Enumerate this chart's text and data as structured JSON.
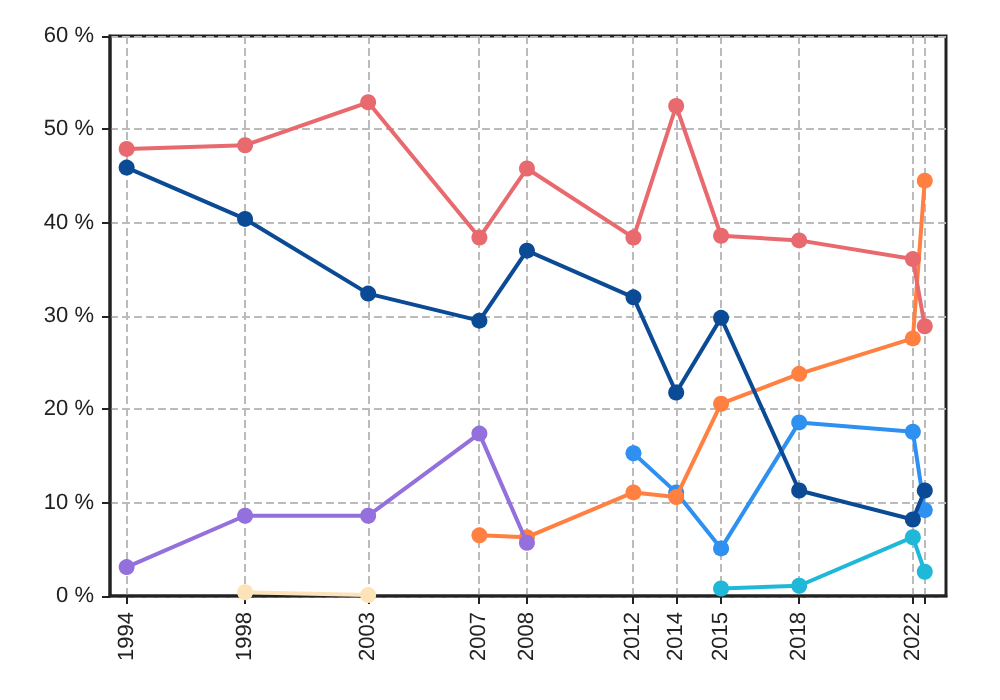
{
  "chart_data": {
    "type": "line",
    "x": [
      "1994-10",
      "1998-12",
      "2003-04",
      "2007-03",
      "2008-11",
      "2012-08",
      "2014-02",
      "2015-09",
      "2018-06",
      "2022-06",
      "2022-11"
    ],
    "series": [
      {
        "color": "#e8696e",
        "values": [
          47.9,
          48.3,
          52.9,
          38.4,
          45.8,
          38.4,
          52.5,
          38.6,
          38.1,
          36.1,
          28.9
        ]
      },
      {
        "color": "#0b4a94",
        "values": [
          45.9,
          40.4,
          32.4,
          29.5,
          37.0,
          32.0,
          21.8,
          29.8,
          11.3,
          8.2,
          11.3
        ]
      },
      {
        "color": "#9370db",
        "values": [
          3.1,
          8.6,
          8.6,
          17.4,
          5.7,
          null,
          null,
          null,
          null,
          null,
          null
        ]
      },
      {
        "color": "#fde3b8",
        "values": [
          null,
          0.4,
          0.1,
          null,
          null,
          null,
          null,
          null,
          null,
          null,
          null
        ]
      },
      {
        "color": "#ff8040",
        "values": [
          null,
          null,
          null,
          6.5,
          6.3,
          11.1,
          10.6,
          20.6,
          23.8,
          27.6,
          44.5
        ]
      },
      {
        "color": "#2e90f0",
        "values": [
          null,
          null,
          null,
          null,
          null,
          15.3,
          11.1,
          5.1,
          18.6,
          17.6,
          9.2
        ]
      },
      {
        "color": "#20b8d8",
        "values": [
          null,
          null,
          null,
          null,
          null,
          null,
          null,
          0.8,
          1.1,
          6.3,
          2.6
        ]
      }
    ],
    "xlim": [
      "1994-03",
      "2023-08"
    ],
    "xticks": [
      {
        "value": "1994-10",
        "label": "1994"
      },
      {
        "value": "1998-12",
        "label": "1998"
      },
      {
        "value": "2003-04",
        "label": "2003"
      },
      {
        "value": "2007-03",
        "label": "2007"
      },
      {
        "value": "2008-11",
        "label": "2008"
      },
      {
        "value": "2012-08",
        "label": "2012"
      },
      {
        "value": "2014-02",
        "label": "2014"
      },
      {
        "value": "2015-09",
        "label": "2015"
      },
      {
        "value": "2018-06",
        "label": "2018"
      },
      {
        "value": "2022-06",
        "label": "2022"
      },
      {
        "value": "2022-11",
        "label": null
      }
    ],
    "ylim": [
      0,
      60
    ],
    "yticks": [
      {
        "value": 0,
        "label": "0 %"
      },
      {
        "value": 10,
        "label": "10 %"
      },
      {
        "value": 20,
        "label": "20 %"
      },
      {
        "value": 30,
        "label": "30 %"
      },
      {
        "value": 40,
        "label": "40 %"
      },
      {
        "value": 50,
        "label": "50 %"
      },
      {
        "value": 60,
        "label": "60 %"
      }
    ],
    "grid": true,
    "marker": "circle",
    "line_style": "solid"
  }
}
